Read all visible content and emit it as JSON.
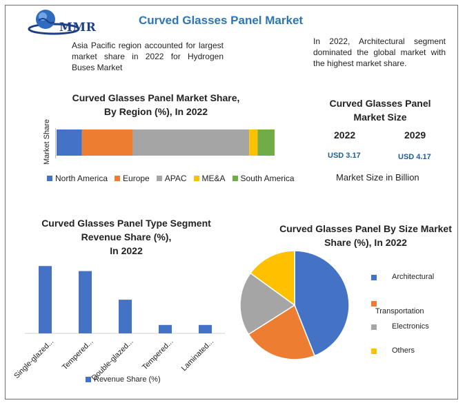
{
  "logo": {
    "text": "MMR"
  },
  "title": "Curved Glasses Panel Market",
  "notes": {
    "left": "Asia Pacific region accounted for largest market share in 2022 for Hydrogen Buses Market",
    "right": "In 2022, Architectural segment dominated the global market with the highest market share."
  },
  "market_size": {
    "title_line1": "Curved Glasses Panel",
    "title_line2": "Market Size",
    "year1": "2022",
    "value1": "USD 3.17",
    "year2": "2029",
    "value2": "USD 4.17",
    "unit": "Market Size in Billion"
  },
  "colors": {
    "blue": "#4472c4",
    "orange": "#ed7d31",
    "gray": "#a5a5a5",
    "yellow": "#ffc000",
    "green": "#70ad47"
  },
  "chart_data": [
    {
      "type": "bar",
      "orientation": "horizontal-stacked",
      "title_line1": "Curved Glasses Panel Market Share,",
      "title_line2": "By Region (%), In 2022",
      "ylabel": "Market Share",
      "series": [
        {
          "name": "North America",
          "value": 12,
          "color": "#4472c4"
        },
        {
          "name": "Europe",
          "value": 24,
          "color": "#ed7d31"
        },
        {
          "name": "APAC",
          "value": 55,
          "color": "#a5a5a5"
        },
        {
          "name": "ME&A",
          "value": 4,
          "color": "#ffc000"
        },
        {
          "name": "South America",
          "value": 8,
          "color": "#70ad47"
        }
      ],
      "legend": "bottom",
      "grid": false
    },
    {
      "type": "bar",
      "title_line1": "Curved Glasses Panel Type Segment",
      "title_line2": "Revenue Share (%),",
      "title_line3": "In 2022",
      "categories": [
        "Single-glazed...",
        "Tempered...",
        "Double-glazed...",
        "Tempered...",
        "Laminated..."
      ],
      "series": [
        {
          "name": "Revenue Share (%)",
          "values": [
            40,
            37,
            20,
            5,
            5
          ],
          "color": "#4472c4"
        }
      ],
      "ylim": [
        0,
        45
      ],
      "legend": "bottom",
      "grid": false
    },
    {
      "type": "pie",
      "title_line1": "Curved Glasses Panel By Size Market",
      "title_line2": "Share (%), In 2022",
      "slices": [
        {
          "name": "Architectural",
          "value": 44,
          "color": "#4472c4"
        },
        {
          "name": "Transportation",
          "value": 22,
          "color": "#ed7d31"
        },
        {
          "name": "Electronics",
          "value": 19,
          "color": "#a5a5a5"
        },
        {
          "name": "Others",
          "value": 15,
          "color": "#ffc000"
        }
      ],
      "legend": "right"
    }
  ]
}
